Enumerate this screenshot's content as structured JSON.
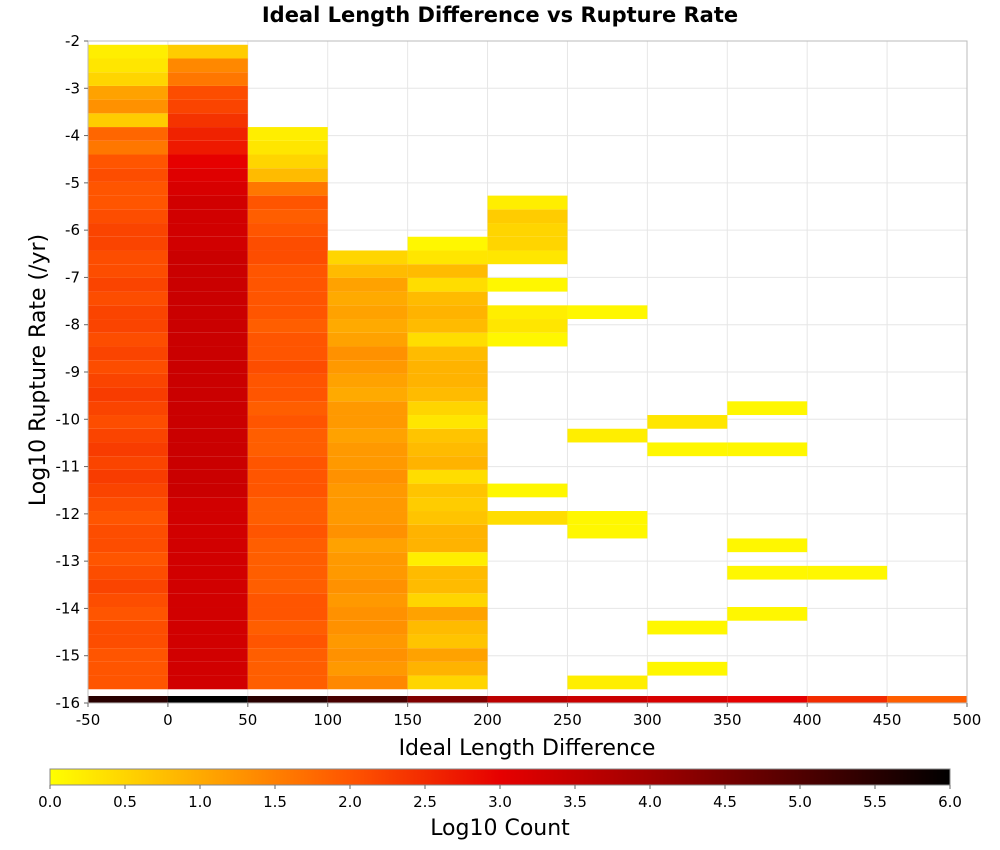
{
  "chart_data": {
    "type": "heatmap",
    "title": "Ideal Length Difference vs Rupture Rate",
    "xlabel": "Ideal Length Difference",
    "ylabel": "Log10 Rupture Rate (/yr)",
    "colorbar_label": "Log10 Count",
    "xlim": [
      -50,
      500
    ],
    "ylim": [
      -16,
      -2
    ],
    "x_ticks": [
      "-50",
      "0",
      "50",
      "100",
      "150",
      "200",
      "250",
      "300",
      "350",
      "400",
      "450",
      "500"
    ],
    "y_ticks": [
      "-2",
      "-3",
      "-4",
      "-5",
      "-6",
      "-7",
      "-8",
      "-9",
      "-10",
      "-11",
      "-12",
      "-13",
      "-14",
      "-15",
      "-16"
    ],
    "colorbar_range": [
      0.0,
      6.0
    ],
    "colorbar_ticks": [
      "0.0",
      "0.5",
      "1.0",
      "1.5",
      "2.0",
      "2.5",
      "3.0",
      "3.5",
      "4.0",
      "4.5",
      "5.0",
      "5.5",
      "6.0"
    ],
    "colormap": [
      "#ffff00",
      "#ffaa00",
      "#ff5500",
      "#e60000",
      "#a00000",
      "#500000",
      "#000000"
    ],
    "x_bin_width": 50,
    "y_bin_height": 0.29,
    "y_bin_start": -16,
    "grid": true,
    "columns": [
      {
        "x_start": -50,
        "bins_from": 0,
        "values": [
          5.5,
          2.0,
          2.0,
          2.0,
          2.1,
          2.1,
          2.0,
          2.1,
          2.2,
          2.1,
          2.0,
          2.1,
          2.1,
          2.0,
          2.1,
          2.2,
          2.3,
          2.2,
          2.3,
          2.2,
          2.1,
          2.2,
          2.3,
          2.2,
          2.1,
          2.2,
          2.1,
          2.2,
          2.2,
          2.1,
          2.2,
          2.1,
          2.1,
          2.2,
          2.2,
          2.1,
          2.0,
          2.0,
          2.1,
          2.0,
          1.6,
          1.8,
          0.6,
          1.3,
          1.1,
          0.5,
          0.3,
          0.2
        ]
      },
      {
        "x_start": 0,
        "bins_from": 0,
        "values": [
          6.0,
          3.3,
          3.3,
          3.3,
          3.3,
          3.3,
          3.3,
          3.3,
          3.3,
          3.3,
          3.3,
          3.3,
          3.3,
          3.3,
          3.3,
          3.4,
          3.4,
          3.4,
          3.4,
          3.4,
          3.4,
          3.4,
          3.4,
          3.4,
          3.4,
          3.4,
          3.4,
          3.4,
          3.4,
          3.4,
          3.4,
          3.4,
          3.4,
          3.3,
          3.3,
          3.3,
          3.3,
          3.2,
          3.1,
          3.0,
          2.7,
          2.6,
          2.4,
          2.2,
          2.1,
          1.6,
          1.4,
          0.6
        ]
      },
      {
        "x_start": 50,
        "bins_from": 0,
        "values": [
          5.5,
          1.9,
          1.9,
          1.9,
          2.0,
          1.9,
          2.0,
          2.0,
          1.9,
          1.9,
          1.9,
          1.9,
          2.0,
          1.9,
          1.9,
          2.0,
          2.0,
          2.0,
          1.9,
          1.9,
          2.0,
          1.9,
          2.0,
          2.0,
          2.1,
          2.0,
          2.0,
          1.9,
          2.0,
          2.0,
          2.0,
          2.0,
          2.1,
          2.1,
          2.0,
          1.9,
          2.0,
          1.6,
          0.8,
          0.5,
          0.3,
          0.2
        ]
      },
      {
        "x_start": 100,
        "bins_from": 0,
        "values": [
          5.1,
          1.4,
          1.2,
          1.3,
          1.2,
          1.3,
          1.3,
          1.2,
          1.3,
          1.2,
          1.2,
          1.1,
          1.3,
          1.2,
          1.2,
          1.2,
          1.3,
          1.2,
          1.2,
          1.1,
          1.2,
          1.2,
          1.0,
          1.1,
          1.2,
          1.3,
          1.1,
          1.0,
          1.1,
          1.0,
          1.1,
          0.8,
          0.5
        ]
      },
      {
        "x_start": 150,
        "bins_from": 0,
        "values": [
          4.4,
          0.5,
          0.9,
          1.1,
          0.7,
          0.8,
          1.1,
          0.5,
          0.8,
          0.8,
          0.2,
          0.9,
          0.9,
          0.7,
          0.6,
          0.7,
          0.4,
          0.9,
          0.8,
          0.7,
          0.3,
          0.5,
          0.8,
          0.9,
          0.9,
          0.8,
          0.4,
          0.8,
          0.9,
          0.8,
          0.4,
          0.8,
          0.3,
          0.1
        ]
      },
      {
        "x_start": 200,
        "bins_from": 0,
        "values": [
          3.6,
          null,
          null,
          null,
          null,
          null,
          null,
          null,
          null,
          null,
          null,
          null,
          null,
          0.4,
          null,
          0.1,
          null,
          null,
          null,
          null,
          null,
          null,
          null,
          null,
          null,
          null,
          0.1,
          0.3,
          0.2,
          null,
          0.1,
          null,
          0.3,
          0.5,
          0.5,
          0.6,
          0.2
        ]
      },
      {
        "x_start": 250,
        "bins_from": 0,
        "values": [
          3.4,
          0.2,
          null,
          null,
          null,
          null,
          null,
          null,
          null,
          null,
          null,
          null,
          0.1,
          0.1,
          null,
          null,
          null,
          null,
          null,
          0.2,
          null,
          null,
          null,
          null,
          null,
          null,
          null,
          null,
          0.1
        ]
      },
      {
        "x_start": 300,
        "bins_from": 0,
        "values": [
          3.2,
          null,
          0.1,
          null,
          null,
          0.1,
          null,
          null,
          null,
          null,
          null,
          null,
          null,
          null,
          null,
          null,
          null,
          null,
          0.1,
          null,
          0.3
        ]
      },
      {
        "x_start": 350,
        "bins_from": 0,
        "values": [
          3.0,
          null,
          null,
          null,
          null,
          null,
          0.1,
          null,
          null,
          0.1,
          null,
          0.1,
          null,
          null,
          null,
          null,
          null,
          null,
          0.1,
          null,
          null,
          0.1
        ]
      },
      {
        "x_start": 400,
        "bins_from": 0,
        "values": [
          2.5,
          null,
          null,
          null,
          null,
          null,
          null,
          null,
          null,
          0.1
        ]
      },
      {
        "x_start": 450,
        "bins_from": 0,
        "values": [
          1.9
        ]
      }
    ]
  }
}
